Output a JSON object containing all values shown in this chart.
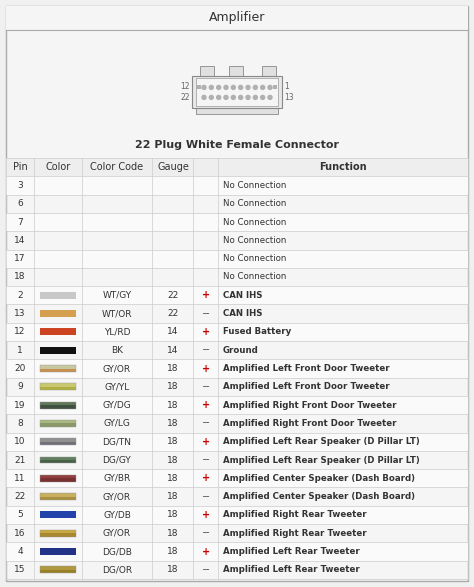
{
  "title": "Amplifier",
  "subtitle": "22 Plug White Female Connector",
  "rows": [
    {
      "pin": "3",
      "wire": null,
      "color_code": "",
      "gauge": "",
      "polarity": "",
      "function": "No Connection"
    },
    {
      "pin": "6",
      "wire": null,
      "color_code": "",
      "gauge": "",
      "polarity": "",
      "function": "No Connection"
    },
    {
      "pin": "7",
      "wire": null,
      "color_code": "",
      "gauge": "",
      "polarity": "",
      "function": "No Connection"
    },
    {
      "pin": "14",
      "wire": null,
      "color_code": "",
      "gauge": "",
      "polarity": "",
      "function": "No Connection"
    },
    {
      "pin": "17",
      "wire": null,
      "color_code": "",
      "gauge": "",
      "polarity": "",
      "function": "No Connection"
    },
    {
      "pin": "18",
      "wire": null,
      "color_code": "",
      "gauge": "",
      "polarity": "",
      "function": "No Connection"
    },
    {
      "pin": "2",
      "wire": {
        "type": "solid",
        "color": "#c8c8c8"
      },
      "color_code": "WT/GY",
      "gauge": "22",
      "polarity": "+",
      "function": "CAN IHS"
    },
    {
      "pin": "13",
      "wire": {
        "type": "solid",
        "color": "#d4a050"
      },
      "color_code": "WT/OR",
      "gauge": "22",
      "polarity": "-",
      "function": "CAN IHS"
    },
    {
      "pin": "12",
      "wire": {
        "type": "solid",
        "color": "#cc4422"
      },
      "color_code": "YL/RD",
      "gauge": "14",
      "polarity": "+",
      "function": "Fused Battery"
    },
    {
      "pin": "1",
      "wire": {
        "type": "solid",
        "color": "#111111"
      },
      "color_code": "BK",
      "gauge": "14",
      "polarity": "-",
      "function": "Ground"
    },
    {
      "pin": "20",
      "wire": {
        "type": "dual",
        "c1": "#c8c8a0",
        "c2": "#c89050"
      },
      "color_code": "GY/OR",
      "gauge": "18",
      "polarity": "+",
      "function": "Amplified Left Front Door Tweeter"
    },
    {
      "pin": "9",
      "wire": {
        "type": "dual",
        "c1": "#c8c870",
        "c2": "#b0b040"
      },
      "color_code": "GY/YL",
      "gauge": "18",
      "polarity": "-",
      "function": "Amplified Left Front Door Tweeter"
    },
    {
      "pin": "19",
      "wire": {
        "type": "dual",
        "c1": "#607858",
        "c2": "#405040"
      },
      "color_code": "GY/DG",
      "gauge": "18",
      "polarity": "+",
      "function": "Amplified Right Front Door Tweeter"
    },
    {
      "pin": "8",
      "wire": {
        "type": "dual",
        "c1": "#a8b880",
        "c2": "#8a9868"
      },
      "color_code": "GY/LG",
      "gauge": "18",
      "polarity": "-",
      "function": "Amplified Right Front Door Tweeter"
    },
    {
      "pin": "10",
      "wire": {
        "type": "dual",
        "c1": "#909090",
        "c2": "#707078"
      },
      "color_code": "DG/TN",
      "gauge": "18",
      "polarity": "+",
      "function": "Amplified Left Rear Speaker (D Pillar LT)"
    },
    {
      "pin": "21",
      "wire": {
        "type": "dual",
        "c1": "#608060",
        "c2": "#486048"
      },
      "color_code": "DG/GY",
      "gauge": "18",
      "polarity": "-",
      "function": "Amplified Left Rear Speaker (D Pillar LT)"
    },
    {
      "pin": "11",
      "wire": {
        "type": "dual",
        "c1": "#904040",
        "c2": "#783030"
      },
      "color_code": "GY/BR",
      "gauge": "18",
      "polarity": "+",
      "function": "Amplified Center Speaker (Dash Board)"
    },
    {
      "pin": "22",
      "wire": {
        "type": "dual",
        "c1": "#c8b060",
        "c2": "#a89040"
      },
      "color_code": "GY/OR",
      "gauge": "18",
      "polarity": "-",
      "function": "Amplified Center Speaker (Dash Board)"
    },
    {
      "pin": "5",
      "wire": {
        "type": "solid",
        "color": "#2244aa"
      },
      "color_code": "GY/DB",
      "gauge": "18",
      "polarity": "+",
      "function": "Amplified Right Rear Tweeter"
    },
    {
      "pin": "16",
      "wire": {
        "type": "dual",
        "c1": "#c8a840",
        "c2": "#a88830"
      },
      "color_code": "GY/OR",
      "gauge": "18",
      "polarity": "-",
      "function": "Amplified Right Rear Tweeter"
    },
    {
      "pin": "4",
      "wire": {
        "type": "solid",
        "color": "#223388"
      },
      "color_code": "DG/DB",
      "gauge": "18",
      "polarity": "+",
      "function": "Amplified Left Rear Tweeter"
    },
    {
      "pin": "15",
      "wire": {
        "type": "dual",
        "c1": "#b09840",
        "c2": "#988028"
      },
      "color_code": "DG/OR",
      "gauge": "18",
      "polarity": "-",
      "function": "Amplified Left Rear Tweeter"
    }
  ],
  "bg_color": "#f0f0f0",
  "table_bg": "#ffffff",
  "header_bg": "#e8e8e8",
  "plus_color": "#cc0000",
  "minus_color": "#555555",
  "border_color": "#aaaaaa",
  "text_color": "#333333",
  "title_fontsize": 9,
  "header_fontsize": 7,
  "cell_fontsize": 6.5,
  "func_fontsize": 6.2
}
